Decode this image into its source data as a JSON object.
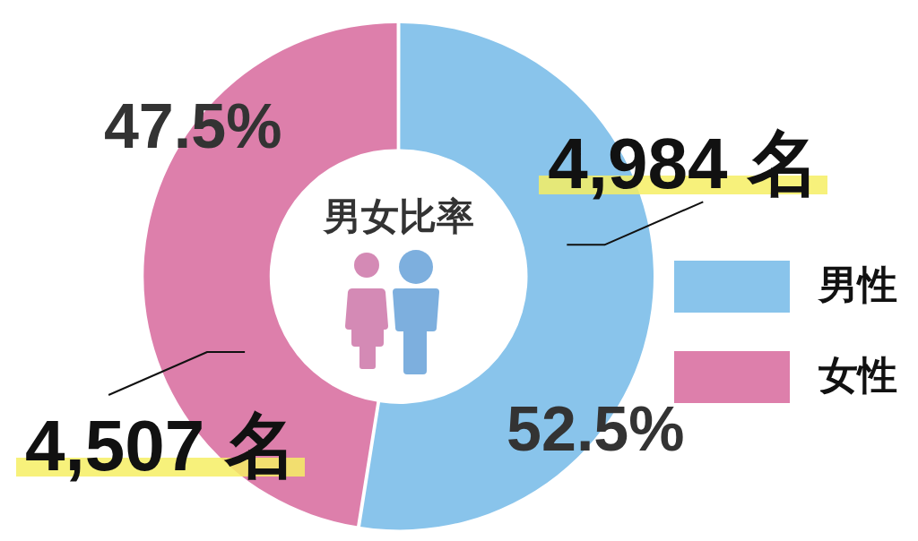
{
  "chart_data": {
    "type": "donut",
    "title": "男女比率",
    "categories": [
      "男性",
      "女性"
    ],
    "values": [
      4984,
      4507
    ],
    "colors": [
      "#89c4eb",
      "#dd7fab"
    ],
    "value_labels": [
      "4,984 名",
      "4,507 名"
    ],
    "annotations": [
      "52.5%",
      "47.5%"
    ],
    "legend": "right"
  }
}
